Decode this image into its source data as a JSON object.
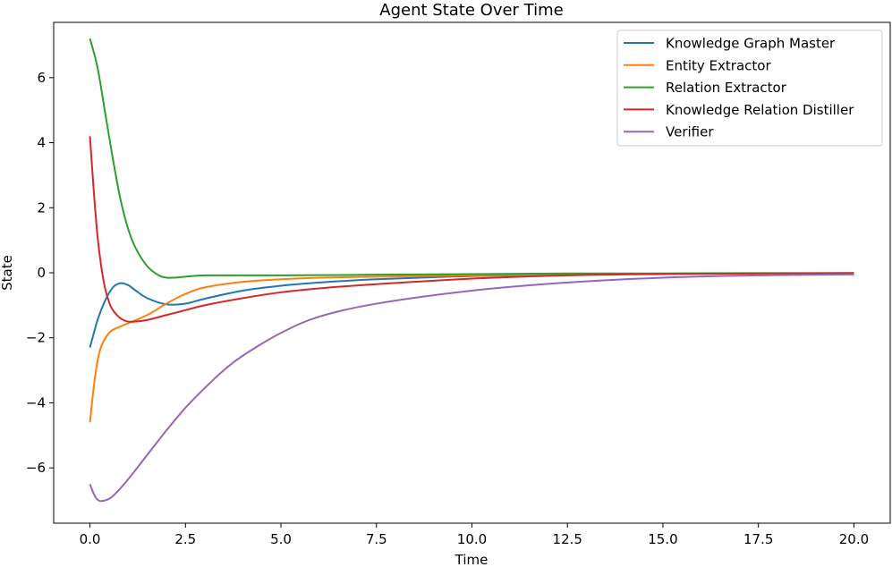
{
  "chart_data": {
    "type": "line",
    "title": "Agent State Over Time",
    "xlabel": "Time",
    "ylabel": "State",
    "xlim": [
      -0.95,
      20.95
    ],
    "ylim": [
      -7.7,
      7.7
    ],
    "xticks": [
      0.0,
      2.5,
      5.0,
      7.5,
      10.0,
      12.5,
      15.0,
      17.5,
      20.0
    ],
    "xtick_labels": [
      "0.0",
      "2.5",
      "5.0",
      "7.5",
      "10.0",
      "12.5",
      "15.0",
      "17.5",
      "20.0"
    ],
    "yticks": [
      -6,
      -4,
      -2,
      0,
      2,
      4,
      6
    ],
    "ytick_labels": [
      "−6",
      "−4",
      "−2",
      "0",
      "2",
      "4",
      "6"
    ],
    "grid": false,
    "legend_position": "top-right",
    "series": [
      {
        "name": "Knowledge Graph Master",
        "color": "#1f77b4",
        "x": [
          0,
          0.2,
          0.4,
          0.6,
          0.8,
          1.0,
          1.2,
          1.5,
          2.0,
          2.5,
          3.0,
          4.0,
          5.0,
          6.0,
          7.5,
          10.0,
          12.5,
          15.0,
          17.5,
          20.0
        ],
        "y": [
          -2.3,
          -1.45,
          -0.85,
          -0.45,
          -0.32,
          -0.38,
          -0.55,
          -0.78,
          -0.97,
          -0.95,
          -0.8,
          -0.55,
          -0.4,
          -0.3,
          -0.2,
          -0.1,
          -0.05,
          -0.03,
          -0.02,
          -0.01
        ]
      },
      {
        "name": "Entity Extractor",
        "color": "#ff7f0e",
        "x": [
          0,
          0.1,
          0.2,
          0.3,
          0.5,
          0.7,
          1.0,
          1.5,
          2.0,
          2.5,
          3.0,
          4.0,
          5.0,
          6.0,
          7.5,
          10.0,
          12.5,
          15.0,
          17.5,
          20.0
        ],
        "y": [
          -4.6,
          -3.5,
          -2.7,
          -2.25,
          -1.85,
          -1.7,
          -1.55,
          -1.3,
          -0.95,
          -0.65,
          -0.45,
          -0.28,
          -0.2,
          -0.15,
          -0.12,
          -0.08,
          -0.05,
          -0.03,
          -0.02,
          -0.01
        ]
      },
      {
        "name": "Relation Extractor",
        "color": "#2ca02c",
        "x": [
          0,
          0.2,
          0.4,
          0.6,
          0.8,
          1.0,
          1.2,
          1.5,
          1.8,
          2.0,
          2.2,
          2.5,
          3.0,
          4.0,
          5.0,
          7.5,
          10.0,
          12.5,
          15.0,
          17.5,
          20.0
        ],
        "y": [
          7.2,
          6.3,
          4.9,
          3.5,
          2.25,
          1.35,
          0.75,
          0.2,
          -0.08,
          -0.15,
          -0.15,
          -0.12,
          -0.08,
          -0.08,
          -0.08,
          -0.06,
          -0.04,
          -0.02,
          -0.02,
          -0.01,
          -0.01
        ]
      },
      {
        "name": "Knowledge Relation Distiller",
        "color": "#d62728",
        "x": [
          0,
          0.1,
          0.2,
          0.3,
          0.4,
          0.5,
          0.6,
          0.8,
          1.0,
          1.2,
          1.5,
          2.0,
          2.5,
          3.0,
          4.0,
          5.0,
          6.0,
          7.5,
          10.0,
          12.5,
          15.0,
          17.5,
          20.0
        ],
        "y": [
          4.2,
          2.5,
          1.1,
          0.15,
          -0.5,
          -0.9,
          -1.15,
          -1.4,
          -1.5,
          -1.5,
          -1.45,
          -1.3,
          -1.15,
          -1.0,
          -0.78,
          -0.6,
          -0.48,
          -0.35,
          -0.18,
          -0.08,
          -0.04,
          -0.02,
          -0.01
        ]
      },
      {
        "name": "Verifier",
        "color": "#9467bd",
        "x": [
          0,
          0.1,
          0.2,
          0.3,
          0.5,
          0.7,
          1.0,
          1.5,
          2.0,
          2.5,
          3.0,
          3.5,
          4.0,
          5.0,
          6.0,
          7.5,
          10.0,
          12.5,
          15.0,
          17.5,
          20.0
        ],
        "y": [
          -6.5,
          -6.8,
          -6.98,
          -7.02,
          -6.95,
          -6.75,
          -6.35,
          -5.6,
          -4.85,
          -4.15,
          -3.55,
          -3.0,
          -2.55,
          -1.85,
          -1.35,
          -0.95,
          -0.55,
          -0.3,
          -0.15,
          -0.08,
          -0.05
        ]
      }
    ]
  }
}
